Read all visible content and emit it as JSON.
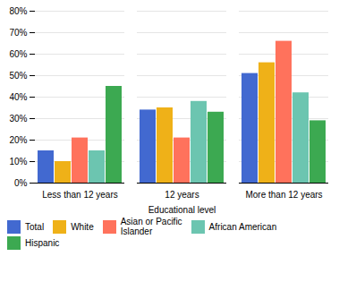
{
  "chart_data": {
    "type": "bar",
    "categories": [
      "Less than 12 years",
      "12 years",
      "More than 12 years"
    ],
    "series": [
      {
        "name": "Total",
        "values": [
          15,
          34,
          51
        ]
      },
      {
        "name": "White",
        "values": [
          10,
          35,
          56
        ]
      },
      {
        "name": "Asian or Pacific\nIslander",
        "values": [
          21,
          21,
          66
        ]
      },
      {
        "name": "African American",
        "values": [
          15,
          38,
          42
        ]
      },
      {
        "name": "Hispanic",
        "values": [
          45,
          33,
          29
        ]
      }
    ],
    "xlabel": "Educational level",
    "ylim": [
      0,
      80
    ],
    "yticks": [
      {
        "value": 0,
        "label": "0%"
      },
      {
        "value": 10,
        "label": "10%"
      },
      {
        "value": 20,
        "label": "20%"
      },
      {
        "value": 30,
        "label": "30%"
      },
      {
        "value": 40,
        "label": "40%"
      },
      {
        "value": 50,
        "label": "50%"
      },
      {
        "value": 60,
        "label": "60%"
      },
      {
        "value": 70,
        "label": "70%"
      },
      {
        "value": 80,
        "label": "80%"
      }
    ],
    "grid": true,
    "legend": "bottom"
  }
}
